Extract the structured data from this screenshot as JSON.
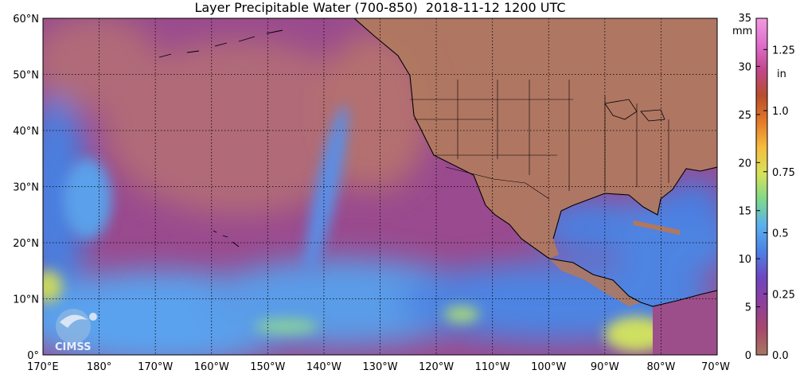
{
  "title": "Layer Precipitable Water (700-850)  2018-11-12 1200 UTC",
  "map": {
    "lon_range": [
      170,
      290
    ],
    "lat_range": [
      0,
      60
    ],
    "lat_ticks": [
      {
        "value": 0,
        "label": "0°"
      },
      {
        "value": 10,
        "label": "10°N"
      },
      {
        "value": 20,
        "label": "20°N"
      },
      {
        "value": 30,
        "label": "30°N"
      },
      {
        "value": 40,
        "label": "40°N"
      },
      {
        "value": 50,
        "label": "50°N"
      },
      {
        "value": 60,
        "label": "60°N"
      }
    ],
    "lon_ticks": [
      {
        "value": 170,
        "label": "170°E"
      },
      {
        "value": 180,
        "label": "180°"
      },
      {
        "value": 190,
        "label": "170°W"
      },
      {
        "value": 200,
        "label": "160°W"
      },
      {
        "value": 210,
        "label": "150°W"
      },
      {
        "value": 220,
        "label": "140°W"
      },
      {
        "value": 230,
        "label": "130°W"
      },
      {
        "value": 240,
        "label": "120°W"
      },
      {
        "value": 250,
        "label": "110°W"
      },
      {
        "value": 260,
        "label": "100°W"
      },
      {
        "value": 270,
        "label": "90°W"
      },
      {
        "value": 280,
        "label": "80°W"
      },
      {
        "value": 290,
        "label": "70°W"
      }
    ],
    "grid": true,
    "land_color": "#b07860",
    "ocean_moist_color": "#4f88e8",
    "ocean_dry_color": "#8a3f98"
  },
  "colorbar": {
    "mm_ticks": [
      "0",
      "5",
      "10",
      "15",
      "20",
      "25",
      "30",
      "35"
    ],
    "mm_unit": "mm",
    "in_ticks": [
      "0.0",
      "0.25",
      "0.5",
      "0.75",
      "1.0",
      "1.25"
    ],
    "in_unit": "in",
    "colors": [
      "#a97560",
      "#a8486c",
      "#8e3f9c",
      "#6e46c2",
      "#4b82e6",
      "#5bb0ee",
      "#7ed88c",
      "#d7e258",
      "#f5be3e",
      "#e57a28",
      "#b84d2b",
      "#c2468c",
      "#e06fcc",
      "#f29ae0"
    ]
  },
  "logo": {
    "text": "CIMSS",
    "icon": "cimss-satellite-logo-icon"
  }
}
